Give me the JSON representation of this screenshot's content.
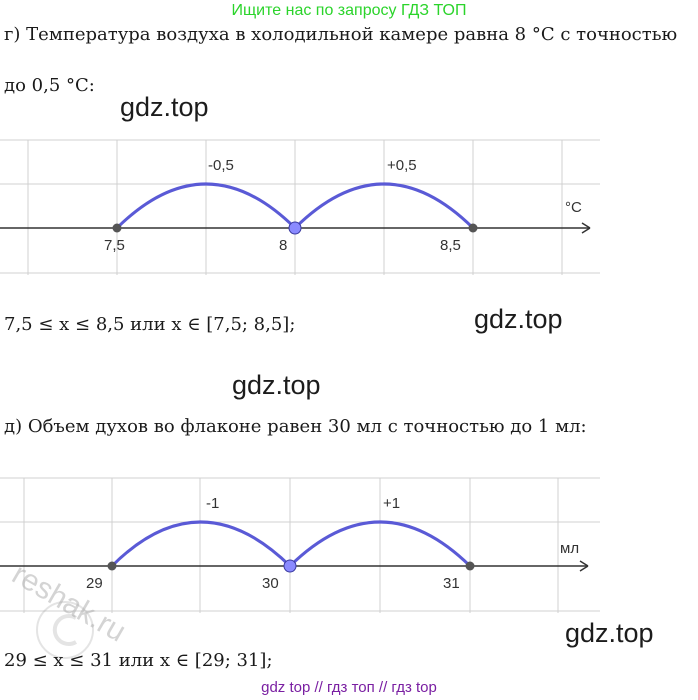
{
  "banner": "Ищите нас по запросу ГДЗ ТОП",
  "part_g": {
    "line1": "г) Температура воздуха в холодильной камере равна 8 °C с точностью",
    "line2": "до 0,5 °C:",
    "unit": "°C",
    "ticks": [
      "7,5",
      "8",
      "8,5"
    ],
    "arc_labels": [
      "-0,5",
      "+0,5"
    ],
    "answer": "7,5 ≤ x ≤ 8,5  или  x ∈ [7,5;  8,5];"
  },
  "part_d": {
    "line1": "д) Объем духов во флаконе равен 30 мл с точностью до 1 мл:",
    "unit": "мл",
    "ticks": [
      "29",
      "30",
      "31"
    ],
    "arc_labels": [
      "-1",
      "+1"
    ],
    "answer": "29 ≤ x ≤ 31  или  x ∈ [29; 31];"
  },
  "watermarks": [
    "gdz.top",
    "gdz.top",
    "gdz.top",
    "gdz.top"
  ],
  "reshak_watermark": "reshak.ru",
  "footer": "gdz top  //  гдз топ  //  гдз top",
  "colors": {
    "banner": "#2bd42b",
    "arc": "#5a5ad6",
    "center_point": "#8a8aff",
    "end_point": "#555555",
    "footer": "#7a1fa2"
  }
}
